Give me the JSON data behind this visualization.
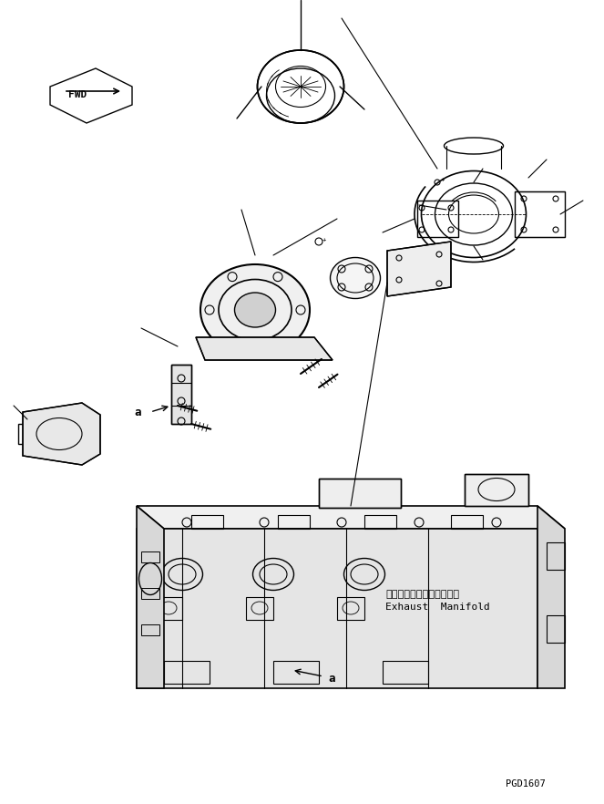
{
  "bg_color": "#ffffff",
  "line_color": "#000000",
  "fig_width": 6.63,
  "fig_height": 8.82,
  "dpi": 100,
  "label_exhaust_jp": "エキゾーストマニホールド",
  "label_exhaust_en": "Exhaust  Manifold",
  "label_a1": "a",
  "label_a2": "a",
  "label_fwd": "FWD",
  "part_id": "PGD1607"
}
